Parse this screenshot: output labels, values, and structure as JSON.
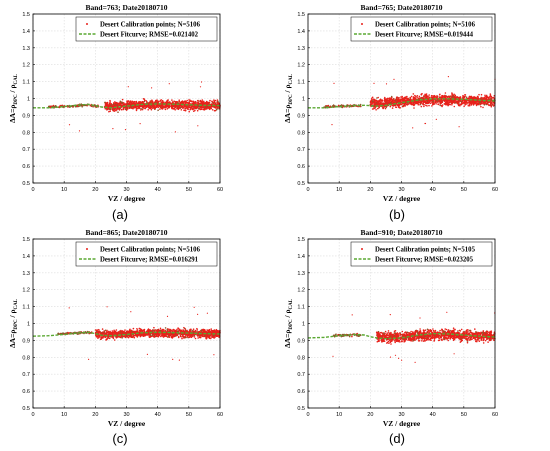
{
  "chart_data": [
    {
      "type": "scatter",
      "panel_label": "(a)",
      "title": "Band=763; Date20180710",
      "xlabel": "VZ / degree",
      "ylabel_parts": {
        "lhs": "ΔA=ρ",
        "sub1": "DPC",
        "mid": " / ρ",
        "sub2": "CAL"
      },
      "xlim": [
        0,
        60
      ],
      "ylim": [
        0.5,
        1.5
      ],
      "xticks": [
        "0",
        "10",
        "20",
        "30",
        "40",
        "50",
        "60"
      ],
      "yticks": [
        "0.5",
        "0.6",
        "0.7",
        "0.8",
        "0.9",
        "1",
        "1.1",
        "1.2",
        "1.3",
        "1.4",
        "1.5"
      ],
      "grid": true,
      "legend_position": "top-right",
      "legend": [
        "Desert Calibration points; N=5106",
        "Desert Fitcurve; RMSE=0.021402"
      ],
      "series": [
        {
          "kind": "points",
          "color": "#e8211b",
          "clusters": [
            {
              "x_range": [
                5,
                21
              ],
              "y_center": 0.955,
              "spread": 0.012
            },
            {
              "x_range": [
                23,
                60
              ],
              "y_center": 0.96,
              "spread": 0.045
            }
          ]
        },
        {
          "kind": "fitcurve",
          "color": "#5aa832",
          "x": [
            0,
            5,
            10,
            15,
            18,
            20,
            22,
            25,
            30,
            35,
            40,
            45,
            50,
            55,
            60
          ],
          "y": [
            0.945,
            0.945,
            0.952,
            0.962,
            0.965,
            0.958,
            0.95,
            0.945,
            0.955,
            0.965,
            0.968,
            0.966,
            0.963,
            0.96,
            0.958
          ]
        }
      ]
    },
    {
      "type": "scatter",
      "panel_label": "(b)",
      "title": "Band=765; Date20180710",
      "xlabel": "VZ / degree",
      "ylabel_parts": {
        "lhs": "ΔA=ρ",
        "sub1": "DPC",
        "mid": " / ρ",
        "sub2": "CAL"
      },
      "xlim": [
        0,
        60
      ],
      "ylim": [
        0.5,
        1.5
      ],
      "xticks": [
        "0",
        "10",
        "20",
        "30",
        "40",
        "50",
        "60"
      ],
      "yticks": [
        "0.5",
        "0.6",
        "0.7",
        "0.8",
        "0.9",
        "1",
        "1.1",
        "1.2",
        "1.3",
        "1.4",
        "1.5"
      ],
      "grid": true,
      "legend_position": "top-right",
      "legend": [
        "Desert Calibration points; N=5106",
        "Desert Fitcurve; RMSE=0.019444"
      ],
      "series": [
        {
          "kind": "points",
          "color": "#e8211b",
          "clusters": [
            {
              "x_range": [
                5,
                17
              ],
              "y_center": 0.955,
              "spread": 0.012
            },
            {
              "x_range": [
                20,
                60
              ],
              "y_center": 0.985,
              "spread": 0.05
            }
          ]
        },
        {
          "kind": "fitcurve",
          "color": "#5aa832",
          "x": [
            0,
            5,
            10,
            15,
            18,
            20,
            22,
            25,
            30,
            35,
            40,
            45,
            50,
            55,
            60
          ],
          "y": [
            0.945,
            0.945,
            0.952,
            0.958,
            0.96,
            0.958,
            0.955,
            0.96,
            0.975,
            0.99,
            0.998,
            0.998,
            0.995,
            0.99,
            0.985
          ]
        }
      ]
    },
    {
      "type": "scatter",
      "panel_label": "(c)",
      "title": "Band=865; Date20180710",
      "xlabel": "VZ / degree",
      "ylabel_parts": {
        "lhs": "ΔA=ρ",
        "sub1": "DPC",
        "mid": " / ρ",
        "sub2": "CAL"
      },
      "xlim": [
        0,
        60
      ],
      "ylim": [
        0.5,
        1.5
      ],
      "xticks": [
        "0",
        "10",
        "20",
        "30",
        "40",
        "50",
        "60"
      ],
      "yticks": [
        "0.5",
        "0.6",
        "0.7",
        "0.8",
        "0.9",
        "1",
        "1.1",
        "1.2",
        "1.3",
        "1.4",
        "1.5"
      ],
      "grid": true,
      "legend_position": "top-right",
      "legend": [
        "Desert Calibration points; N=5106",
        "Desert Fitcurve; RMSE=0.016291"
      ],
      "series": [
        {
          "kind": "points",
          "color": "#e8211b",
          "clusters": [
            {
              "x_range": [
                8,
                19
              ],
              "y_center": 0.945,
              "spread": 0.01
            },
            {
              "x_range": [
                20,
                60
              ],
              "y_center": 0.94,
              "spread": 0.04
            }
          ]
        },
        {
          "kind": "fitcurve",
          "color": "#5aa832",
          "x": [
            0,
            5,
            10,
            15,
            18,
            20,
            22,
            25,
            30,
            35,
            40,
            45,
            50,
            55,
            60
          ],
          "y": [
            0.925,
            0.928,
            0.935,
            0.945,
            0.948,
            0.94,
            0.93,
            0.928,
            0.935,
            0.945,
            0.948,
            0.946,
            0.943,
            0.94,
            0.938
          ]
        }
      ]
    },
    {
      "type": "scatter",
      "panel_label": "(d)",
      "title": "Band=910; Date20180710",
      "xlabel": "VZ / degree",
      "ylabel_parts": {
        "lhs": "ΔA=ρ",
        "sub1": "DPC",
        "mid": " / ρ",
        "sub2": "CAL"
      },
      "xlim": [
        0,
        60
      ],
      "ylim": [
        0.5,
        1.5
      ],
      "xticks": [
        "0",
        "10",
        "20",
        "30",
        "40",
        "50",
        "60"
      ],
      "yticks": [
        "0.5",
        "0.6",
        "0.7",
        "0.8",
        "0.9",
        "1",
        "1.1",
        "1.2",
        "1.3",
        "1.4",
        "1.5"
      ],
      "grid": true,
      "legend_position": "top-right",
      "legend": [
        "Desert Calibration points; N=5105",
        "Desert Fitcurve; RMSE=0.023205"
      ],
      "series": [
        {
          "kind": "points",
          "color": "#e8211b",
          "clusters": [
            {
              "x_range": [
                8,
                17
              ],
              "y_center": 0.93,
              "spread": 0.012
            },
            {
              "x_range": [
                22,
                60
              ],
              "y_center": 0.925,
              "spread": 0.05
            }
          ]
        },
        {
          "kind": "fitcurve",
          "color": "#5aa832",
          "x": [
            0,
            5,
            10,
            15,
            18,
            20,
            22,
            25,
            30,
            35,
            40,
            45,
            50,
            55,
            60
          ],
          "y": [
            0.915,
            0.918,
            0.928,
            0.935,
            0.932,
            0.922,
            0.915,
            0.91,
            0.915,
            0.93,
            0.94,
            0.938,
            0.932,
            0.925,
            0.92
          ]
        }
      ]
    }
  ]
}
